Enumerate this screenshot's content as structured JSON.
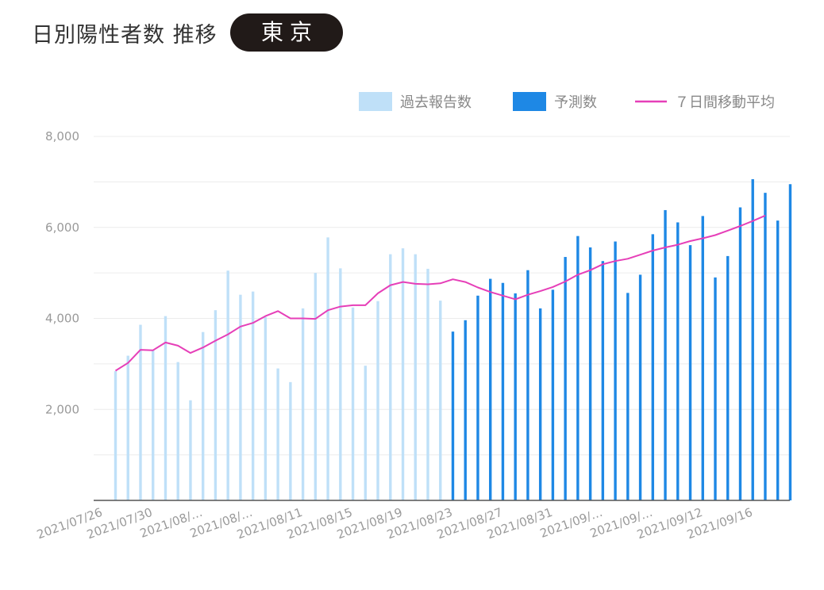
{
  "header": {
    "title": "日別陽性者数 推移",
    "region": "東京"
  },
  "colors": {
    "past": "#bfe0f8",
    "forecast": "#1e88e5",
    "average": "#e63fb8",
    "grid": "#ececec",
    "axis": "#555555"
  },
  "chart_data": {
    "type": "bar",
    "ylim": [
      0,
      8000
    ],
    "yticks": [
      2000,
      4000,
      6000,
      8000
    ],
    "ytick_labels": [
      "2,000",
      "4,000",
      "6,000",
      "8,000"
    ],
    "xtick_labels": [
      "2021/07/26",
      "2021/07/30",
      "2021/08/…",
      "2021/08/…",
      "2021/08/11",
      "2021/08/15",
      "2021/08/19",
      "2021/08/23",
      "2021/08/27",
      "2021/08/31",
      "2021/09/…",
      "2021/09/…",
      "2021/09/12",
      "2021/09/16"
    ],
    "legend": {
      "placement": "top-right",
      "past": "過去報告数",
      "forecast": "予測数",
      "average": "７日間移動平均"
    },
    "past_values": [
      2840,
      3180,
      3860,
      3300,
      4050,
      3040,
      2200,
      3700,
      4180,
      5050,
      4520,
      4590,
      4030,
      2900,
      2600,
      4220,
      5000,
      5780,
      5100,
      4240,
      2960,
      4380,
      5410,
      5540,
      5410,
      5090,
      4390
    ],
    "forecast_values": [
      3710,
      3960,
      4500,
      4870,
      4780,
      4550,
      5060,
      4220,
      4630,
      5350,
      5810,
      5560,
      5260,
      5690,
      4560,
      4960,
      5850,
      6380,
      6110,
      5610,
      6250,
      4900,
      5370,
      6440,
      7060,
      6760,
      6150,
      6950
    ],
    "moving_average": [
      2850,
      3020,
      3310,
      3300,
      3470,
      3400,
      3240,
      3360,
      3510,
      3650,
      3820,
      3900,
      4050,
      4160,
      4000,
      4000,
      3990,
      4180,
      4260,
      4290,
      4290,
      4550,
      4730,
      4800,
      4760,
      4750,
      4770,
      4860,
      4800,
      4680,
      4580,
      4500,
      4420,
      4520,
      4600,
      4690,
      4810,
      4960,
      5060,
      5190,
      5260,
      5310,
      5400,
      5490,
      5560,
      5620,
      5700,
      5760,
      5830,
      5930,
      6030,
      6140,
      6260
    ]
  }
}
